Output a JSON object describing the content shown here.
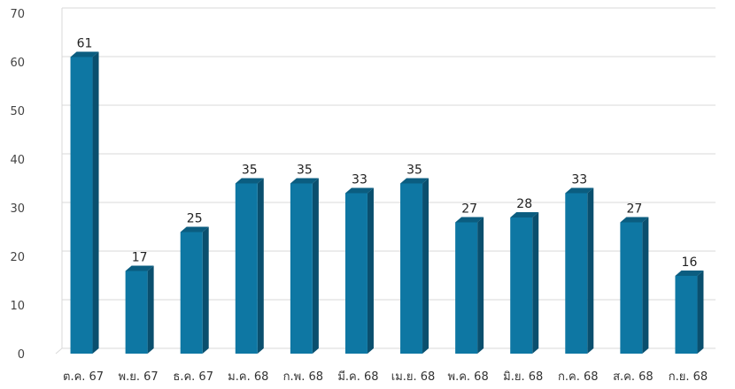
{
  "chart_data": {
    "type": "bar",
    "title": "",
    "xlabel": "",
    "ylabel": "",
    "ylim": [
      0,
      70
    ],
    "yticks": [
      0,
      10,
      20,
      30,
      40,
      50,
      60,
      70
    ],
    "grid": true,
    "categories": [
      "ต.ค. 67",
      "พ.ย. 67",
      "ธ.ค. 67",
      "ม.ค. 68",
      "ก.พ. 68",
      "มี.ค. 68",
      "เม.ย. 68",
      "พ.ค. 68",
      "มิ.ย. 68",
      "ก.ค. 68",
      "ส.ค. 68",
      "ก.ย. 68"
    ],
    "values": [
      61,
      17,
      25,
      35,
      35,
      33,
      35,
      27,
      28,
      33,
      27,
      16
    ],
    "colors": {
      "bar_front": "#0e77a3",
      "bar_side": "#0a4f6e",
      "bar_top": "#0b5d80"
    }
  }
}
